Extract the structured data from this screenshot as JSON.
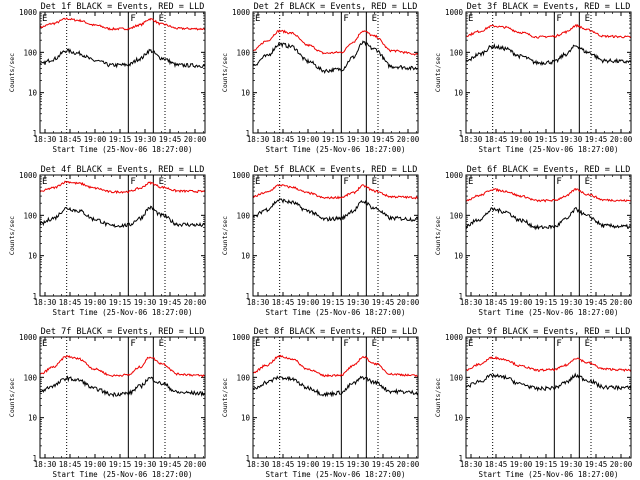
{
  "chart_data": {
    "type": "line",
    "layout_grid": "3x3",
    "y_scale": "log",
    "ylim": [
      1,
      1000
    ],
    "y_ticks": [
      1,
      10,
      100,
      1000
    ],
    "y_tick_labels": [
      "1",
      "10",
      "100",
      "1000"
    ],
    "ylabel": "Counts/sec",
    "xlabel": "Start Time (25-Nov-06 18:27:00)",
    "x_ticks": [
      "18:30",
      "18:45",
      "19:00",
      "19:15",
      "19:30",
      "19:45",
      "20:00"
    ],
    "x_range": [
      "18:27",
      "20:06"
    ],
    "time_markers": [
      {
        "label": "E",
        "time": "18:27",
        "style": "solid"
      },
      {
        "label": "",
        "time": "18:43",
        "style": "dotted"
      },
      {
        "label": "F",
        "time": "19:20",
        "style": "solid"
      },
      {
        "label": "",
        "time": "19:35",
        "style": "solid"
      },
      {
        "label": "E",
        "time": "19:37",
        "style": "none"
      },
      {
        "label": "",
        "time": "19:42",
        "style": "dotted"
      }
    ],
    "series_colors": {
      "events": "#000000",
      "lld": "#ee0000"
    },
    "sample_times": [
      "18:27",
      "18:35",
      "18:43",
      "18:50",
      "19:00",
      "19:10",
      "19:20",
      "19:27",
      "19:33",
      "19:40",
      "19:50",
      "20:06"
    ],
    "panels": [
      {
        "title": "Det 1f BLACK = Events, RED = LLD",
        "events": [
          50,
          68,
          110,
          95,
          62,
          48,
          49,
          70,
          110,
          72,
          48,
          47
        ],
        "lld": [
          420,
          520,
          680,
          620,
          470,
          380,
          385,
          480,
          670,
          500,
          390,
          380
        ]
      },
      {
        "title": "Det 2f BLACK = Events, RED = LLD",
        "events": [
          48,
          80,
          160,
          140,
          60,
          35,
          38,
          75,
          170,
          120,
          45,
          40
        ],
        "lld": [
          110,
          190,
          340,
          300,
          150,
          95,
          100,
          180,
          340,
          250,
          110,
          90
        ]
      },
      {
        "title": "Det 3f BLACK = Events, RED = LLD",
        "events": [
          60,
          90,
          140,
          125,
          80,
          55,
          58,
          90,
          145,
          100,
          62,
          58
        ],
        "lld": [
          260,
          330,
          450,
          420,
          310,
          240,
          250,
          320,
          460,
          360,
          250,
          240
        ]
      },
      {
        "title": "Det 4f BLACK = Events, RED = LLD",
        "events": [
          60,
          85,
          150,
          130,
          80,
          55,
          57,
          85,
          155,
          100,
          60,
          57
        ],
        "lld": [
          390,
          480,
          680,
          620,
          470,
          380,
          385,
          470,
          640,
          500,
          400,
          390
        ]
      },
      {
        "title": "Det 5f BLACK = Events, RED = LLD",
        "events": [
          90,
          140,
          240,
          210,
          130,
          80,
          85,
          130,
          220,
          150,
          85,
          80
        ],
        "lld": [
          290,
          370,
          560,
          500,
          360,
          270,
          280,
          360,
          540,
          400,
          290,
          275
        ]
      },
      {
        "title": "Det 6f BLACK = Events, RED = LLD",
        "events": [
          55,
          80,
          140,
          125,
          75,
          50,
          52,
          80,
          140,
          95,
          55,
          52
        ],
        "lld": [
          240,
          310,
          440,
          400,
          300,
          230,
          235,
          300,
          440,
          330,
          240,
          230
        ]
      },
      {
        "title": "Det 7f BLACK = Events, RED = LLD",
        "events": [
          45,
          62,
          95,
          85,
          52,
          38,
          40,
          60,
          95,
          70,
          42,
          40
        ],
        "lld": [
          120,
          180,
          330,
          290,
          160,
          110,
          115,
          180,
          320,
          220,
          120,
          110
        ]
      },
      {
        "title": "Det 8f BLACK = Events, RED = LLD",
        "events": [
          50,
          75,
          100,
          90,
          55,
          38,
          42,
          70,
          100,
          75,
          45,
          42
        ],
        "lld": [
          130,
          200,
          330,
          290,
          160,
          110,
          115,
          190,
          320,
          220,
          120,
          110
        ]
      },
      {
        "title": "Det 9f BLACK = Events, RED = LLD",
        "events": [
          60,
          80,
          110,
          100,
          68,
          52,
          55,
          75,
          110,
          85,
          57,
          55
        ],
        "lld": [
          150,
          210,
          310,
          280,
          190,
          150,
          155,
          200,
          300,
          230,
          160,
          150
        ]
      }
    ]
  }
}
